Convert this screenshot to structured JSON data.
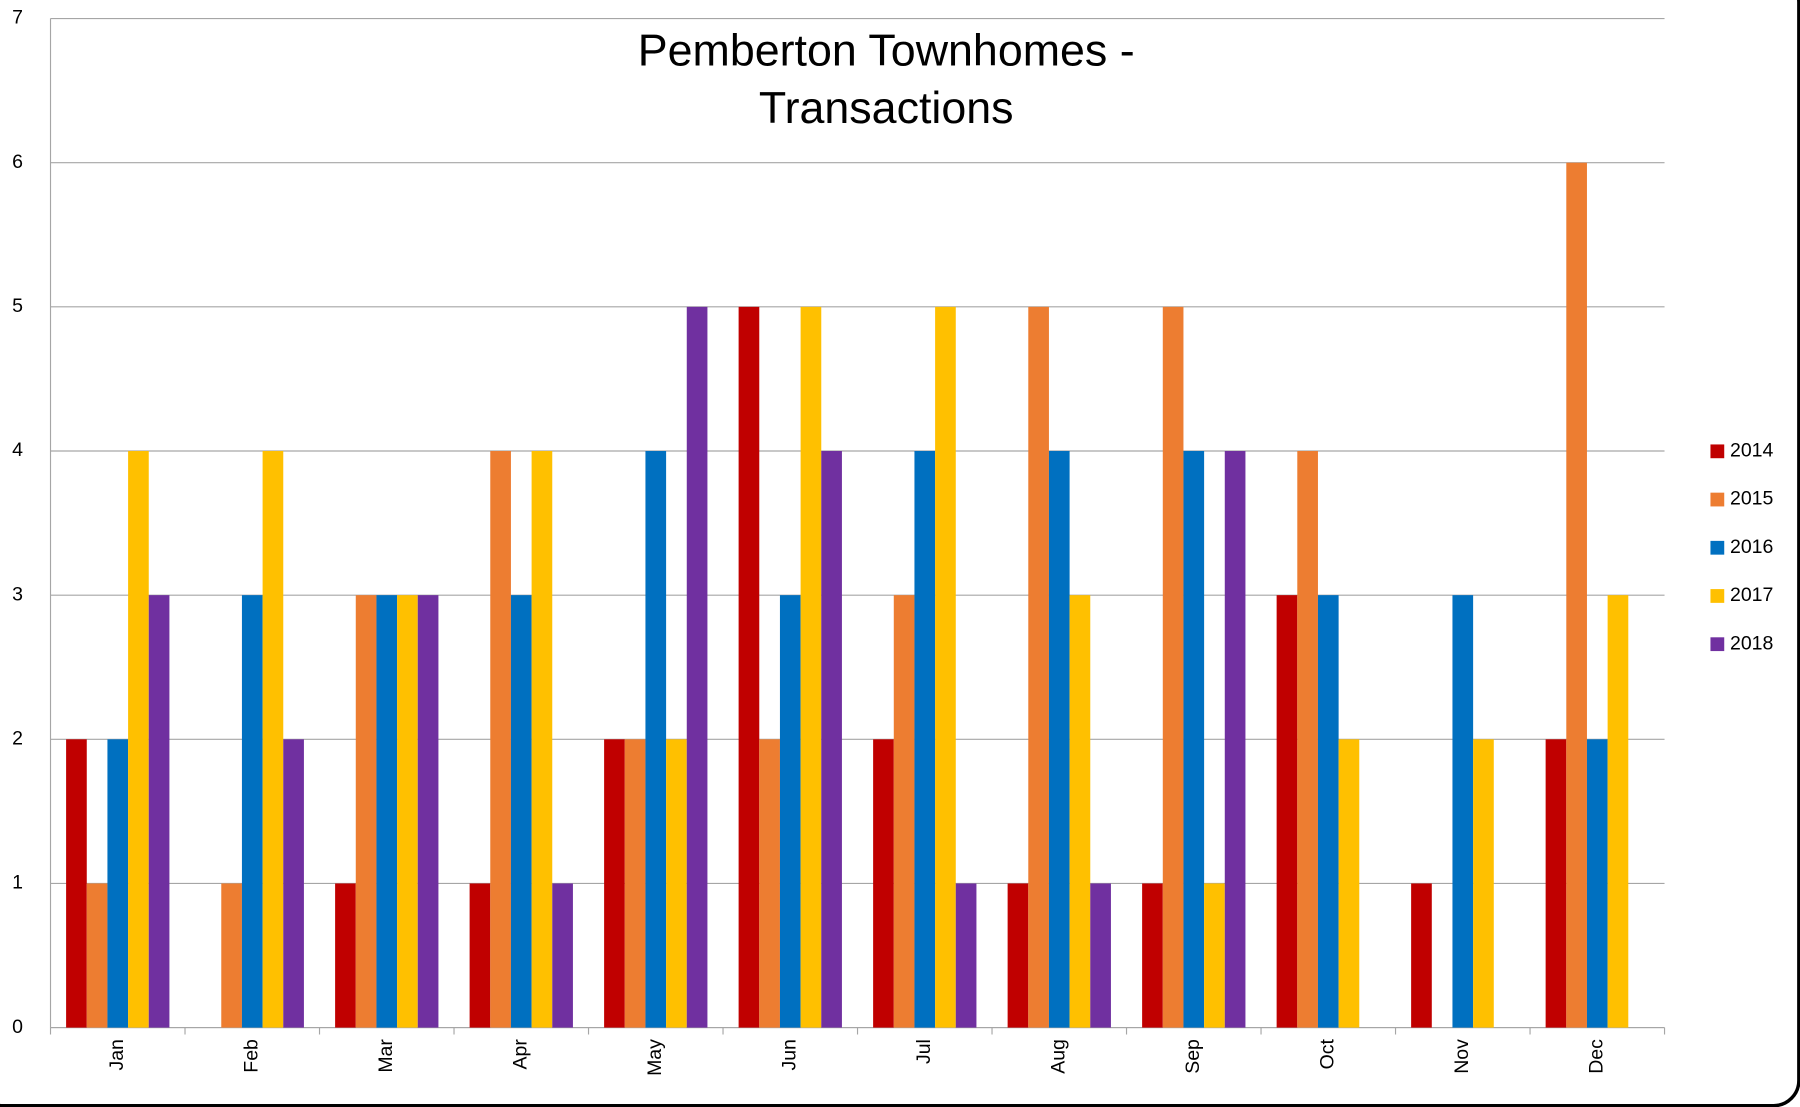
{
  "chart_data": {
    "type": "bar",
    "title": "Pemberton Townhomes - Transactions",
    "categories": [
      "Jan",
      "Feb",
      "Mar",
      "Apr",
      "May",
      "Jun",
      "Jul",
      "Aug",
      "Sep",
      "Oct",
      "Nov",
      "Dec"
    ],
    "series": [
      {
        "name": "2014",
        "color": "#c00000",
        "values": [
          2,
          0,
          1,
          1,
          2,
          5,
          2,
          1,
          1,
          3,
          1,
          2
        ]
      },
      {
        "name": "2015",
        "color": "#ed7d31",
        "values": [
          1,
          1,
          3,
          4,
          2,
          2,
          3,
          5,
          5,
          4,
          0,
          6
        ]
      },
      {
        "name": "2016",
        "color": "#0070c0",
        "values": [
          2,
          3,
          3,
          3,
          4,
          3,
          4,
          4,
          4,
          3,
          3,
          2
        ]
      },
      {
        "name": "2017",
        "color": "#ffc000",
        "values": [
          4,
          4,
          3,
          4,
          2,
          5,
          5,
          3,
          1,
          2,
          2,
          3
        ]
      },
      {
        "name": "2018",
        "color": "#7030a0",
        "values": [
          3,
          2,
          3,
          1,
          5,
          4,
          1,
          1,
          4,
          0,
          0,
          0
        ]
      }
    ],
    "ylim": [
      0,
      7
    ],
    "yticks": [
      0,
      1,
      2,
      3,
      4,
      5,
      6,
      7
    ],
    "grid": true,
    "legend": "right"
  }
}
